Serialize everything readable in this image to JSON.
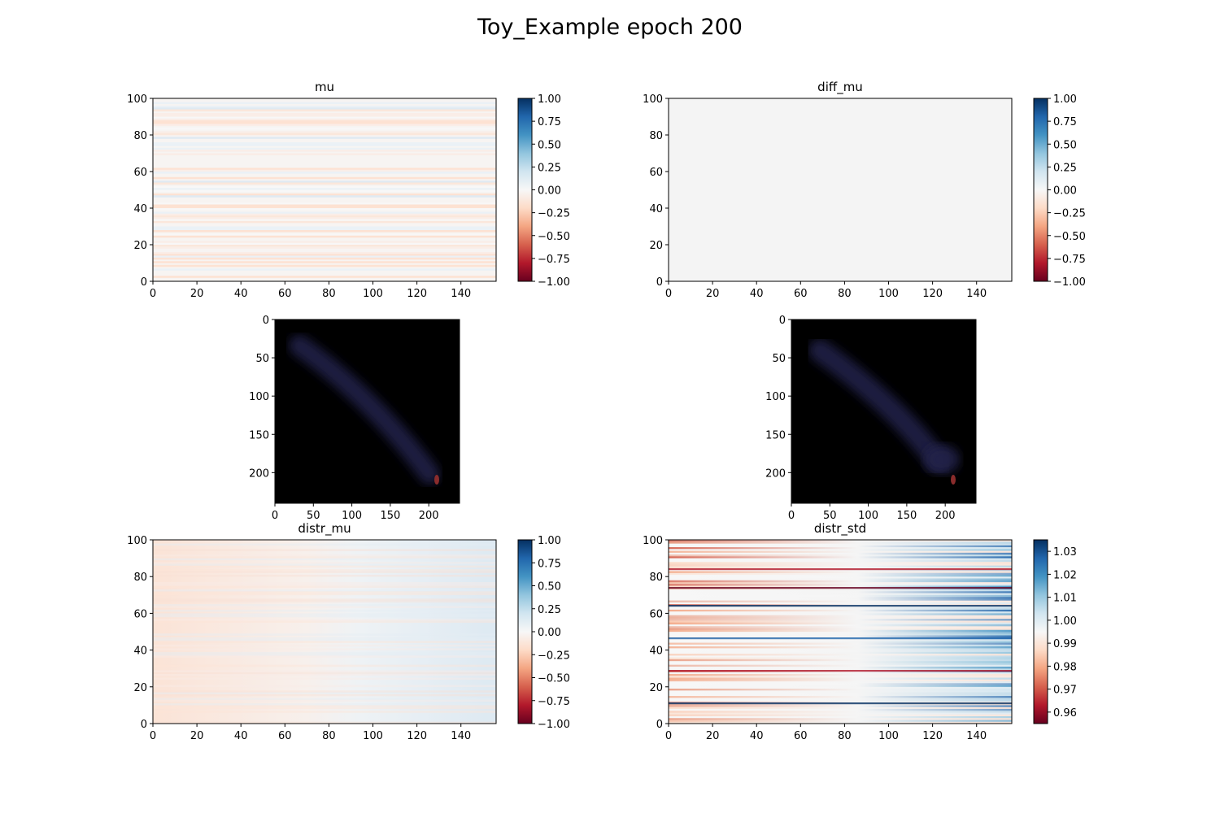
{
  "figure": {
    "title": "Toy_Example epoch 200"
  },
  "chart_data": [
    {
      "id": "mu",
      "type": "heatmap",
      "title": "mu",
      "xlim": [
        0,
        156
      ],
      "ylim": [
        0,
        100
      ],
      "xticks": [
        0,
        20,
        40,
        60,
        80,
        100,
        120,
        140
      ],
      "yticks": [
        0,
        20,
        40,
        60,
        80,
        100
      ],
      "colormap": "RdBu",
      "colorbar": {
        "range": [
          -1.0,
          1.0
        ],
        "ticks": [
          "1.00",
          "0.75",
          "0.50",
          "0.25",
          "0.00",
          "−0.25",
          "−0.50",
          "−0.75",
          "−1.00"
        ]
      }
    },
    {
      "id": "diff_mu",
      "type": "heatmap",
      "title": "diff_mu",
      "xlim": [
        0,
        156
      ],
      "ylim": [
        0,
        100
      ],
      "xticks": [
        0,
        20,
        40,
        60,
        80,
        100,
        120,
        140
      ],
      "yticks": [
        0,
        20,
        40,
        60,
        80,
        100
      ],
      "colormap": "RdBu",
      "colorbar": {
        "range": [
          -1.0,
          1.0
        ],
        "ticks": [
          "1.00",
          "0.75",
          "0.50",
          "0.25",
          "0.00",
          "−0.25",
          "−0.50",
          "−0.75",
          "−1.00"
        ]
      }
    },
    {
      "id": "image_left",
      "type": "heatmap",
      "title": "",
      "xlim": [
        0,
        240
      ],
      "ylim": [
        240,
        0
      ],
      "xticks": [
        0,
        50,
        100,
        150,
        200
      ],
      "yticks": [
        0,
        50,
        100,
        150,
        200
      ],
      "background": "#000000",
      "trail_color": "#2a2a55",
      "marker_color": "#8a2c2c",
      "marker": [
        210,
        210
      ]
    },
    {
      "id": "image_right",
      "type": "heatmap",
      "title": "",
      "xlim": [
        0,
        240
      ],
      "ylim": [
        240,
        0
      ],
      "xticks": [
        0,
        50,
        100,
        150,
        200
      ],
      "yticks": [
        0,
        50,
        100,
        150,
        200
      ],
      "background": "#000000",
      "trail_color": "#2a2a55",
      "marker_color": "#8a2c2c",
      "marker": [
        210,
        210
      ]
    },
    {
      "id": "distr_mu",
      "type": "heatmap",
      "title": "distr_mu",
      "xlim": [
        0,
        156
      ],
      "ylim": [
        0,
        100
      ],
      "xticks": [
        0,
        20,
        40,
        60,
        80,
        100,
        120,
        140
      ],
      "yticks": [
        0,
        20,
        40,
        60,
        80,
        100
      ],
      "colormap": "RdBu",
      "colorbar": {
        "range": [
          -1.0,
          1.0
        ],
        "ticks": [
          "1.00",
          "0.75",
          "0.50",
          "0.25",
          "0.00",
          "−0.25",
          "−0.50",
          "−0.75",
          "−1.00"
        ]
      }
    },
    {
      "id": "distr_std",
      "type": "heatmap",
      "title": "distr_std",
      "xlim": [
        0,
        156
      ],
      "ylim": [
        0,
        100
      ],
      "xticks": [
        0,
        20,
        40,
        60,
        80,
        100,
        120,
        140
      ],
      "yticks": [
        0,
        20,
        40,
        60,
        80,
        100
      ],
      "colormap": "RdBu",
      "colorbar": {
        "range": [
          0.955,
          1.035
        ],
        "ticks": [
          "1.03",
          "1.02",
          "1.01",
          "1.00",
          "0.99",
          "0.98",
          "0.97",
          "0.96"
        ]
      }
    }
  ]
}
